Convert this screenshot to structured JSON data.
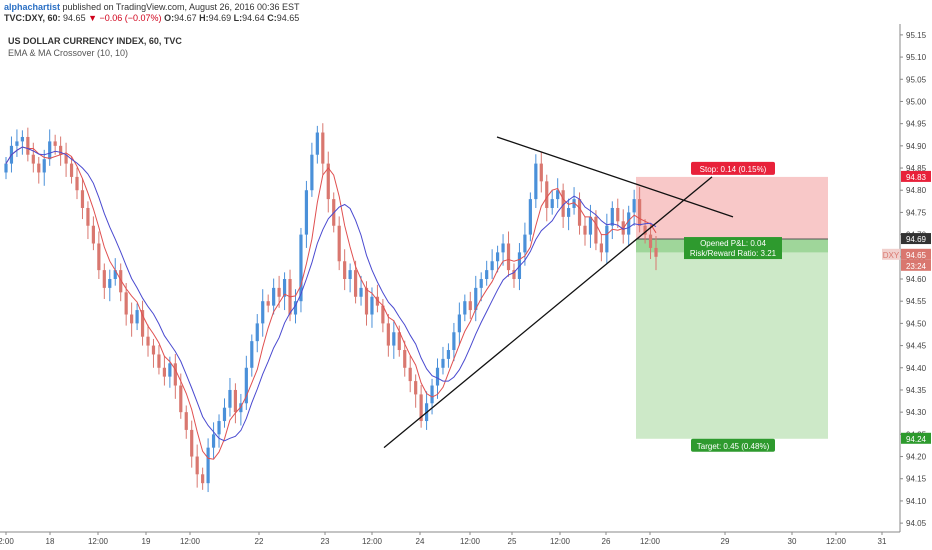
{
  "header": {
    "author": "alphachartist",
    "published_text": "published on TradingView.com, August 26, 2016 00:36 EST",
    "symbol_interval": "TVC:DXY, 60",
    "last": "94.65",
    "change": "▼ −0.06 (−0.07%)",
    "ohlc_o_label": "O:",
    "ohlc_o": "94.67",
    "ohlc_h_label": "H:",
    "ohlc_h": "94.69",
    "ohlc_l_label": "L:",
    "ohlc_l": "94.64",
    "ohlc_c_label": "C:",
    "ohlc_c": "94.65"
  },
  "legend": {
    "title": "US DOLLAR CURRENCY INDEX, 60, TVC",
    "indicator": "EMA & MA Crossover (10, 10)"
  },
  "colors": {
    "up": "#4a90d9",
    "down": "#d9776f",
    "ema": "#e05050",
    "ma": "#4a4ad0",
    "stop_fill": "#f8c8c8",
    "target_fill": "#cde9c8",
    "stop_label": "#e8213a",
    "target_label": "#2e9a2e",
    "price_badge": "#d9776f"
  },
  "chart_data": {
    "type": "candlestick",
    "ylim": [
      94.03,
      95.17
    ],
    "y_ticks": [
      "95.15",
      "95.10",
      "95.05",
      "95.00",
      "94.95",
      "94.90",
      "94.85",
      "94.80",
      "94.75",
      "94.70",
      "94.65",
      "94.60",
      "94.55",
      "94.50",
      "94.45",
      "94.40",
      "94.35",
      "94.30",
      "94.25",
      "94.20",
      "94.15",
      "94.10",
      "94.05"
    ],
    "x_ticks": [
      "2:00",
      "18",
      "12:00",
      "19",
      "12:00",
      "22",
      "23",
      "12:00",
      "24",
      "12:00",
      "25",
      "12:00",
      "26",
      "12:00",
      "29",
      "30",
      "12:00",
      "31"
    ],
    "close_path": [
      94.86,
      94.9,
      94.91,
      94.92,
      94.88,
      94.86,
      94.84,
      94.87,
      94.91,
      94.9,
      94.88,
      94.86,
      94.83,
      94.8,
      94.76,
      94.72,
      94.68,
      94.62,
      94.58,
      94.6,
      94.62,
      94.57,
      94.52,
      94.5,
      94.53,
      94.47,
      94.45,
      94.43,
      94.4,
      94.38,
      94.41,
      94.36,
      94.3,
      94.26,
      94.2,
      94.16,
      94.14,
      94.22,
      94.25,
      94.28,
      94.31,
      94.35,
      94.3,
      94.32,
      94.4,
      94.46,
      94.5,
      94.55,
      94.54,
      94.58,
      94.56,
      94.6,
      94.52,
      94.55,
      94.7,
      94.8,
      94.88,
      94.93,
      94.86,
      94.78,
      94.72,
      94.64,
      94.6,
      94.62,
      94.56,
      94.58,
      94.52,
      94.56,
      94.54,
      94.5,
      94.45,
      94.48,
      94.44,
      94.4,
      94.37,
      94.34,
      94.28,
      94.32,
      94.36,
      94.4,
      94.42,
      94.44,
      94.48,
      94.52,
      94.55,
      94.53,
      94.58,
      94.6,
      94.62,
      94.64,
      94.66,
      94.68,
      94.62,
      94.6,
      94.66,
      94.7,
      94.78,
      94.86,
      94.82,
      94.76,
      94.78,
      94.8,
      94.74,
      94.76,
      94.78,
      94.72,
      94.7,
      94.74,
      94.68,
      94.66,
      94.72,
      94.76,
      94.73,
      94.7,
      94.75,
      94.78,
      94.72,
      94.7,
      94.67,
      94.65
    ],
    "series": [
      {
        "name": "EMA (10)",
        "color": "#e05050"
      },
      {
        "name": "MA (10)",
        "color": "#4a4ad0"
      }
    ],
    "trendlines": [
      {
        "from": [
          "12:00 23",
          94.22
        ],
        "to": [
          "26",
          94.67
        ]
      },
      {
        "from": [
          "24 late",
          94.92
        ],
        "to": [
          "26 12:00",
          94.74
        ]
      }
    ],
    "position": {
      "entry": 94.69,
      "stop": 94.83,
      "target": 94.24,
      "stop_label": "Stop: 0.14 (0.15%)",
      "pnl_label": "Opened P&L: 0.04",
      "rr_label": "Risk/Reward Ratio: 3.21",
      "target_label": "Target: 0.45 (0.48%)"
    },
    "price_badges": [
      {
        "text": "94.83",
        "color": "#e8213a"
      },
      {
        "text": "94.69",
        "color": "#333333"
      },
      {
        "text": "94.65",
        "color": "#d9776f"
      },
      {
        "text": "23:24",
        "color": "#d9776f"
      },
      {
        "text": "94.24",
        "color": "#2e9a2e"
      }
    ],
    "symbol_badge": "DXY"
  }
}
